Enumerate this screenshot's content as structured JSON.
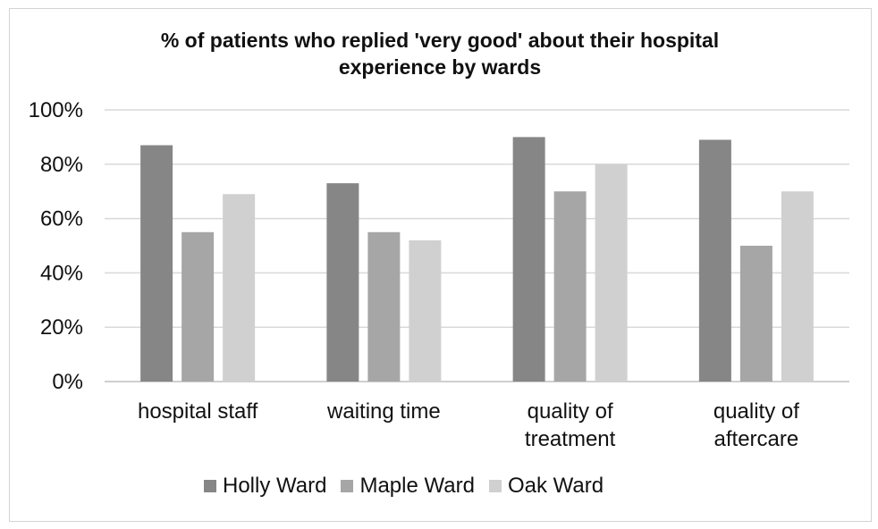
{
  "chart_data": {
    "type": "bar",
    "title_lines": [
      "% of patients who replied 'very good' about their hospital",
      "experience by wards"
    ],
    "categories": [
      [
        "hospital staff"
      ],
      [
        "waiting time"
      ],
      [
        "quality of",
        "treatment"
      ],
      [
        "quality of",
        "aftercare"
      ]
    ],
    "series": [
      {
        "name": "Holly Ward",
        "color": "#868686",
        "values": [
          87,
          73,
          90,
          89
        ]
      },
      {
        "name": "Maple Ward",
        "color": "#a6a6a6",
        "values": [
          55,
          55,
          70,
          50
        ]
      },
      {
        "name": "Oak Ward",
        "color": "#d0d0d0",
        "values": [
          69,
          52,
          80,
          70
        ]
      }
    ],
    "y_ticks": [
      "0%",
      "20%",
      "40%",
      "60%",
      "80%",
      "100%"
    ],
    "ylim": [
      0,
      100
    ],
    "grid": true,
    "legend_position": "bottom"
  }
}
